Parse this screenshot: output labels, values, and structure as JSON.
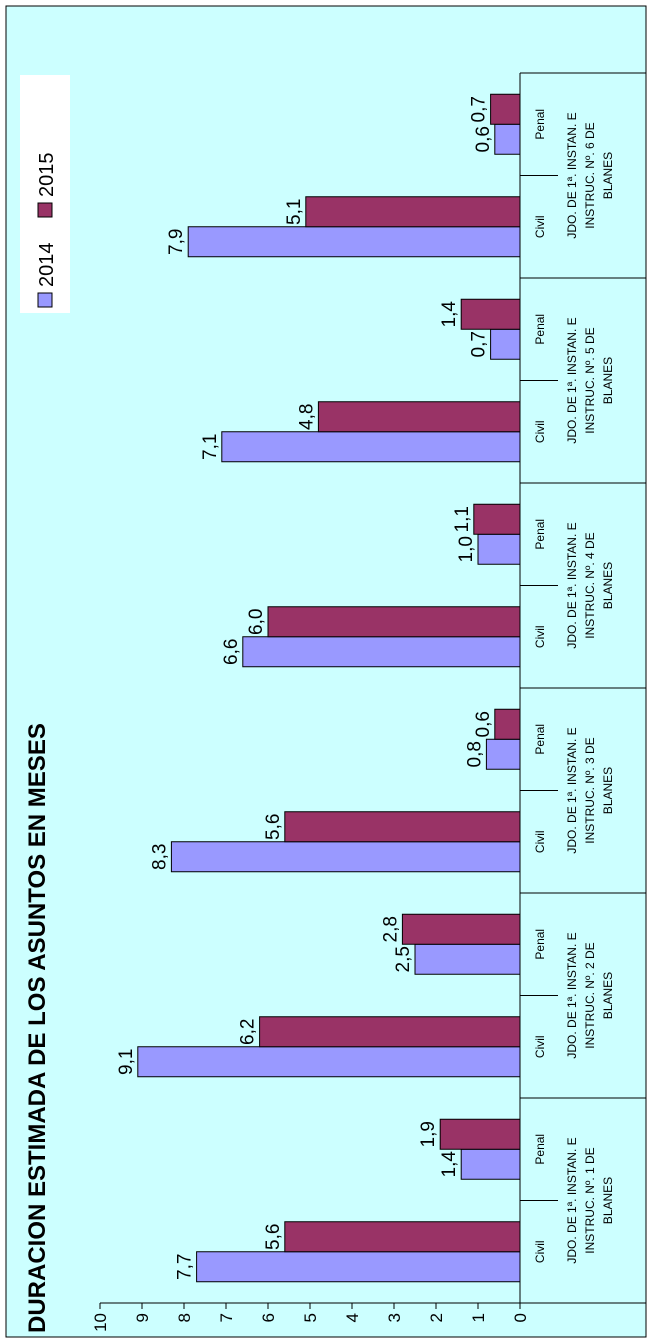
{
  "chart_data": {
    "type": "bar",
    "orientation": "horizontal",
    "title": "DURACION ESTIMADA DE LOS ASUNTOS EN MESES",
    "groups": [
      {
        "label": [
          "JDO. DE 1ª. INSTAN. E",
          "INSTRUC. Nº. 1 DE",
          "BLANES"
        ],
        "subcategories": [
          "Civil",
          "Penal"
        ]
      },
      {
        "label": [
          "JDO. DE 1ª. INSTAN. E",
          "INSTRUC. Nº. 2 DE",
          "BLANES"
        ],
        "subcategories": [
          "Civil",
          "Penal"
        ]
      },
      {
        "label": [
          "JDO. DE 1ª. INSTAN. E",
          "INSTRUC. Nº. 3 DE",
          "BLANES"
        ],
        "subcategories": [
          "Civil",
          "Penal"
        ]
      },
      {
        "label": [
          "JDO. DE 1ª. INSTAN. E",
          "INSTRUC. Nº. 4 DE",
          "BLANES"
        ],
        "subcategories": [
          "Civil",
          "Penal"
        ]
      },
      {
        "label": [
          "JDO. DE 1ª. INSTAN. E",
          "INSTRUC. Nº. 5 DE",
          "BLANES"
        ],
        "subcategories": [
          "Civil",
          "Penal"
        ]
      },
      {
        "label": [
          "JDO. DE 1ª. INSTAN. E",
          "INSTRUC. Nº. 6 DE",
          "BLANES"
        ],
        "subcategories": [
          "Civil",
          "Penal"
        ]
      }
    ],
    "series": [
      {
        "name": "2014",
        "color": "#9999ff",
        "values": [
          7.7,
          1.4,
          9.1,
          2.5,
          8.3,
          0.8,
          6.6,
          1.0,
          7.1,
          0.7,
          7.9,
          0.6
        ],
        "labels": [
          "7,7",
          "1,4",
          "9,1",
          "2,5",
          "8,3",
          "0,8",
          "6,6",
          "1,0",
          "7,1",
          "0,7",
          "7,9",
          "0,6"
        ]
      },
      {
        "name": "2015",
        "color": "#993366",
        "values": [
          5.6,
          1.9,
          6.2,
          2.8,
          5.6,
          0.6,
          6.0,
          1.1,
          4.8,
          1.4,
          5.1,
          0.7
        ],
        "labels": [
          "5,6",
          "1,9",
          "6,2",
          "2,8",
          "5,6",
          "0,6",
          "6,0",
          "1,1",
          "4,8",
          "1,4",
          "5,1",
          "0,7"
        ]
      }
    ],
    "axis": {
      "min": 0,
      "max": 10,
      "step": 1,
      "ticks": [
        "0",
        "1",
        "2",
        "3",
        "4",
        "5",
        "6",
        "7",
        "8",
        "9",
        "10"
      ]
    },
    "legend_position": "top-right",
    "grid": false,
    "colors": {
      "background": "#ccffff",
      "border": "#000000"
    }
  }
}
